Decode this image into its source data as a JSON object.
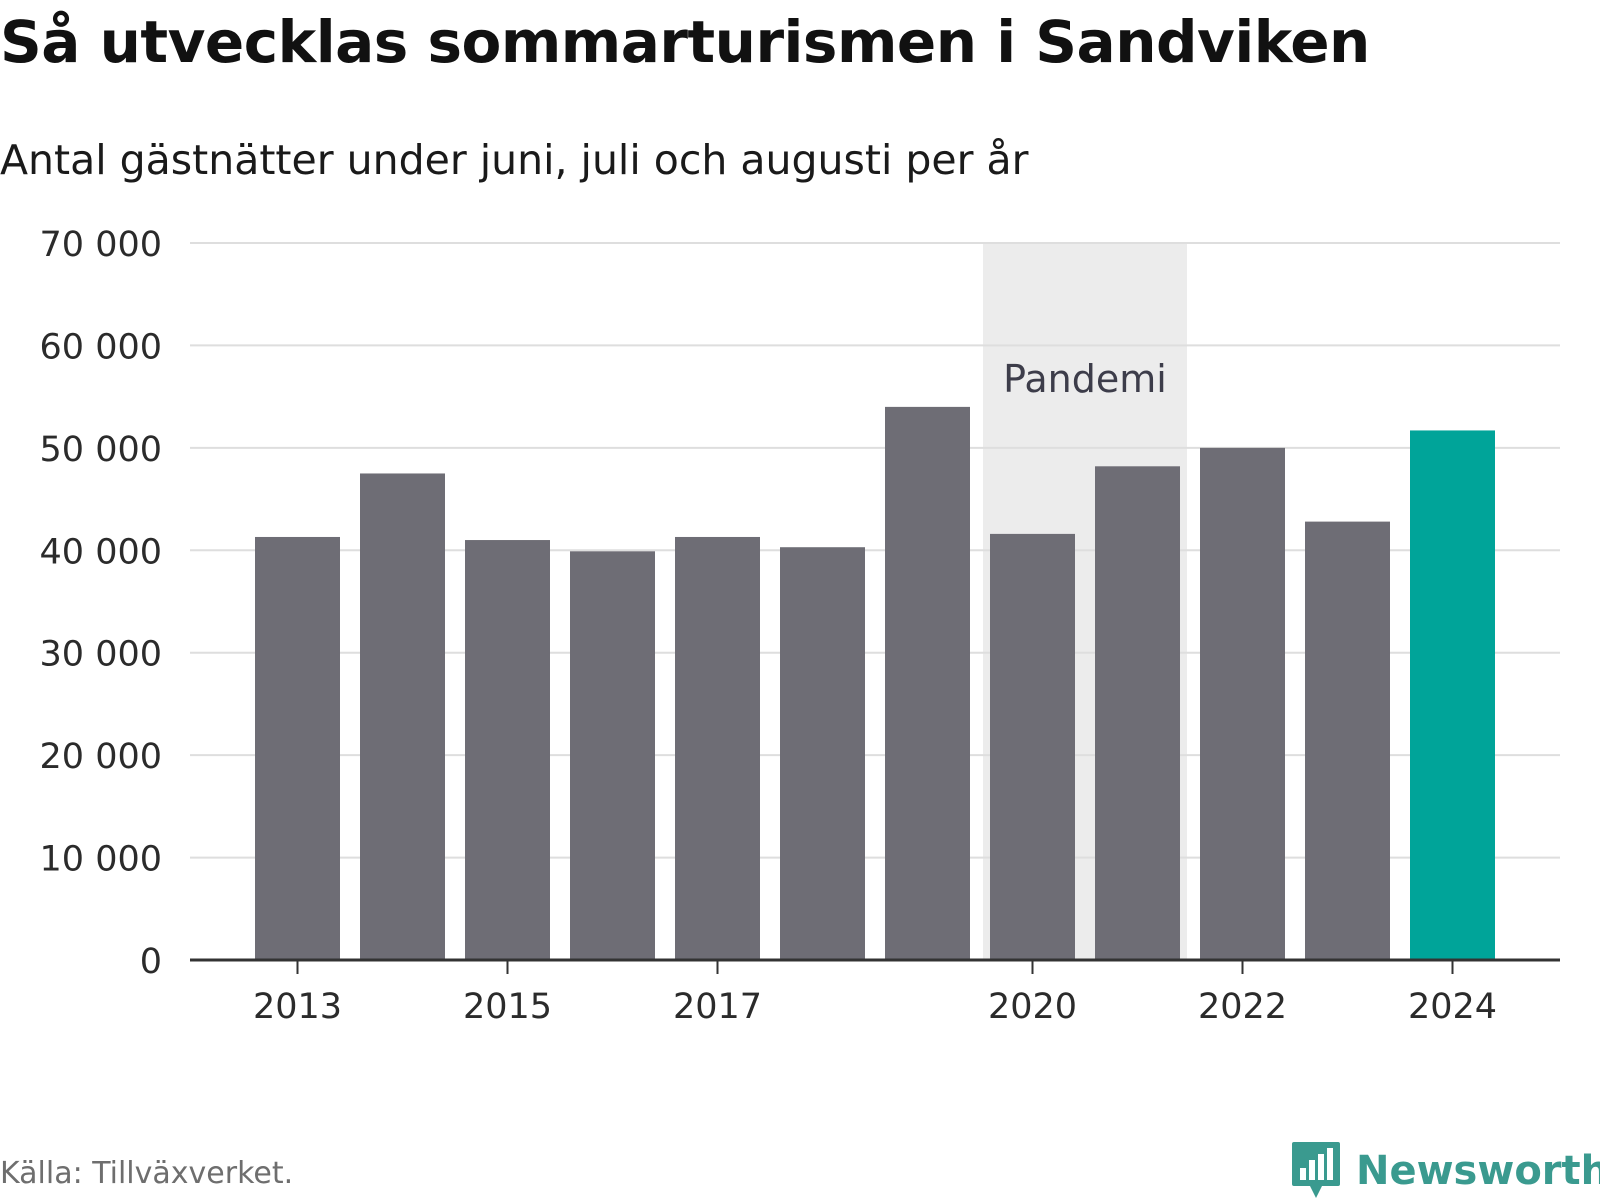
{
  "header": {
    "title": "Så utvecklas sommarturismen i Sandviken",
    "subtitle": "Antal gästnätter under juni, juli och augusti per år"
  },
  "footer": {
    "source": "Källa: Tillväxverket.",
    "brand": "Newsworthy"
  },
  "colors": {
    "bar": "#6e6d75",
    "highlight": "#00a499",
    "band": "#ececec",
    "grid": "#dedede",
    "axis": "#333333",
    "brand": "#3a9a8f"
  },
  "icons": {
    "brand_logo": "newsworthy-bar-chart-icon"
  },
  "chart_data": {
    "type": "bar",
    "x": [
      2013,
      2014,
      2015,
      2016,
      2017,
      2018,
      2019,
      2020,
      2021,
      2022,
      2023,
      2024
    ],
    "values": [
      41300,
      47500,
      41000,
      39900,
      41300,
      40300,
      54000,
      41600,
      48200,
      50000,
      42800,
      51700
    ],
    "highlight": [
      2024
    ],
    "ylim": [
      0,
      70000
    ],
    "yticks": [
      0,
      10000,
      20000,
      30000,
      40000,
      50000,
      60000,
      70000
    ],
    "ytick_labels": [
      "0",
      "10 000",
      "20 000",
      "30 000",
      "40 000",
      "50 000",
      "60 000",
      "70 000"
    ],
    "xticks": [
      "2013",
      "2015",
      "2017",
      "2020",
      "2022",
      "2024"
    ],
    "annotation": {
      "label": "Pandemi",
      "span": [
        2020,
        2021
      ]
    },
    "grid": true,
    "legend": false
  }
}
